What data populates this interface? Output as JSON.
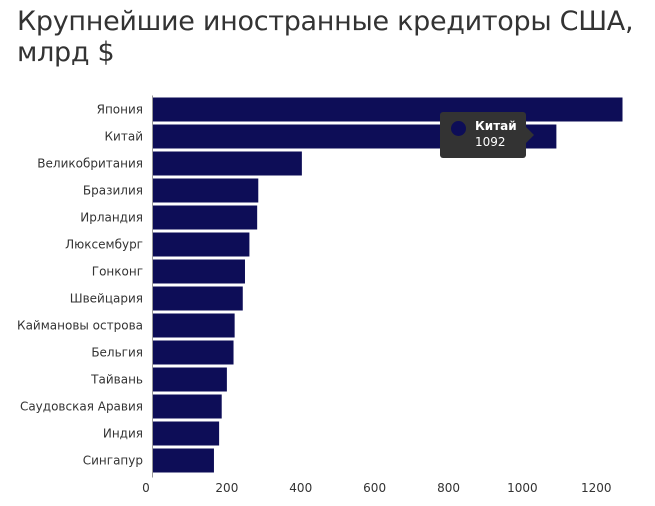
{
  "title": "Крупнейшие иностранные кредиторы США, млрд $",
  "colors": {
    "bar": "#0d0d57",
    "text": "#333333",
    "axis": "#999999"
  },
  "tooltip": {
    "name": "Китай",
    "value": "1092"
  },
  "chart_data": {
    "type": "bar",
    "orientation": "horizontal",
    "title": "Крупнейшие иностранные кредиторы США, млрд $",
    "categories": [
      "Япония",
      "Китай",
      "Великобритания",
      "Бразилия",
      "Ирландия",
      "Люксембург",
      "Гонконг",
      "Швейцария",
      "Каймановы острова",
      "Бельгия",
      "Тайвань",
      "Саудовская Аравия",
      "Индия",
      "Сингапур"
    ],
    "values": [
      1271,
      1092,
      403,
      285,
      282,
      261,
      249,
      243,
      221,
      218,
      200,
      186,
      179,
      165
    ],
    "xlim": [
      0,
      1300
    ],
    "xticks": [
      0,
      200,
      400,
      600,
      800,
      1000,
      1200
    ],
    "grid": false,
    "legend": "none"
  }
}
